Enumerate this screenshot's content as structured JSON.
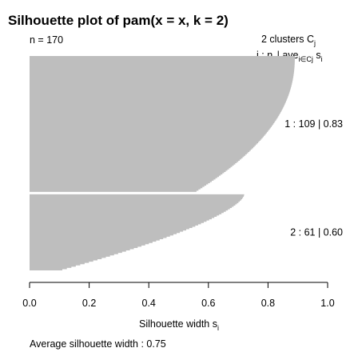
{
  "chart_data": {
    "type": "bar",
    "orientation": "horizontal",
    "title": "Silhouette plot of pam(x = x, k = 2)",
    "n_label": "n = 170",
    "clusters_header": {
      "prefix": "2  clusters  C",
      "subscript": "j"
    },
    "stats_header": {
      "j": "j :  n",
      "j_sub": "j",
      "ave": " | ave",
      "ave_sub": "i∈Cj",
      "s": "  s",
      "s_sub": "i"
    },
    "xlabel": {
      "text": "Silhouette width s",
      "subscript": "i"
    },
    "footer": "Average silhouette width :  0.75",
    "xlim": [
      0,
      1
    ],
    "xticks": [
      0.0,
      0.2,
      0.4,
      0.6,
      0.8,
      1.0
    ],
    "tick_labels": [
      "0.0",
      "0.2",
      "0.4",
      "0.6",
      "0.8",
      "1.0"
    ],
    "bar_color": "#BEBEBE",
    "clusters": [
      {
        "id": 1,
        "n": 109,
        "avg": 0.83,
        "label": "1 :   109  |  0.83",
        "max": 0.89,
        "min": 0.56,
        "shape": 2.2
      },
      {
        "id": 2,
        "n": 61,
        "avg": 0.6,
        "label": "2 :   61  |  0.60",
        "max": 0.72,
        "min": 0.11,
        "shape": 1.5
      }
    ]
  }
}
